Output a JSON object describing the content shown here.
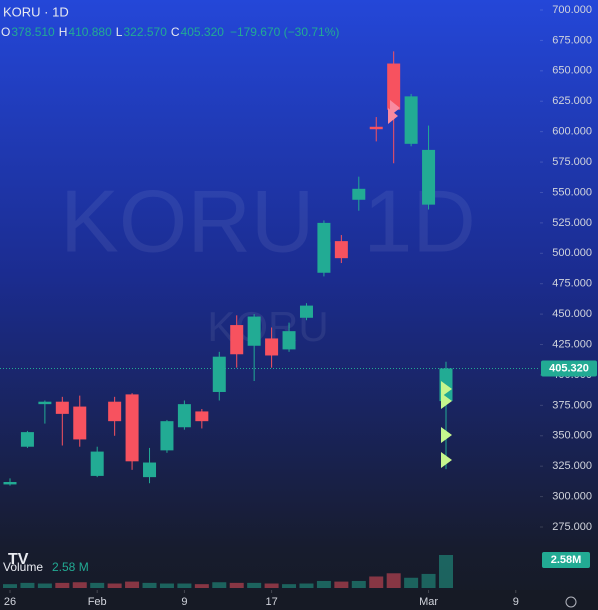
{
  "chart_data": {
    "type": "candlestick",
    "title": "KORU · 1D",
    "header_fields": [
      {
        "key": "O",
        "label": "378.510"
      },
      {
        "key": "H",
        "label": "410.880"
      },
      {
        "key": "L",
        "label": "322.570"
      },
      {
        "key": "C",
        "label": "405.320"
      }
    ],
    "change_label": "−179.670 (−30.71%)",
    "watermark": "KORU, 1D",
    "watermark_small": "KORU",
    "up_color": "#22ab94",
    "down_color": "#f7525f",
    "categories": [
      "26",
      null,
      null,
      null,
      null,
      "Feb",
      null,
      null,
      null,
      null,
      "9",
      null,
      null,
      null,
      null,
      "17",
      null,
      null,
      null,
      null,
      null,
      null,
      null,
      null,
      "Mar",
      null
    ],
    "xticks": [
      {
        "value": 0,
        "label": "26"
      },
      {
        "value": 5,
        "label": "Feb"
      },
      {
        "value": 10,
        "label": "9"
      },
      {
        "value": 15,
        "label": "17"
      },
      {
        "value": 24,
        "label": "Mar"
      },
      {
        "value": 29,
        "label": "9"
      }
    ],
    "open": [
      310,
      341,
      376,
      378,
      374,
      317,
      378,
      384,
      316,
      338,
      357,
      370,
      386,
      441,
      424,
      430,
      421,
      447,
      484,
      510,
      544,
      604,
      656,
      590,
      540,
      378.51
    ],
    "high": [
      315,
      354,
      379,
      382,
      383,
      341,
      382,
      385,
      340,
      363,
      379,
      372,
      419,
      449,
      450,
      439,
      443,
      459,
      527,
      515,
      563,
      612,
      666,
      631,
      605,
      410.88
    ],
    "low": [
      309,
      340,
      360,
      342,
      341,
      316,
      350,
      322,
      311,
      336,
      355,
      356,
      379,
      406,
      395,
      406,
      419,
      445,
      481,
      492,
      535,
      592,
      574,
      588,
      536,
      322.57
    ],
    "close": [
      312,
      353,
      378,
      368,
      347,
      337,
      362,
      329,
      328,
      362,
      376,
      362,
      415,
      417,
      448,
      416,
      436,
      457,
      525,
      496,
      553,
      602,
      618,
      629,
      585,
      405.32
    ],
    "volume": {
      "name": "Volume",
      "value_label": "2.58 M",
      "tag_label": "2.58M",
      "values": [
        0.3,
        0.4,
        0.35,
        0.4,
        0.45,
        0.4,
        0.35,
        0.5,
        0.4,
        0.35,
        0.35,
        0.3,
        0.45,
        0.4,
        0.4,
        0.35,
        0.3,
        0.35,
        0.55,
        0.5,
        0.55,
        0.9,
        1.15,
        0.8,
        1.1,
        2.58
      ]
    },
    "ylim": [
      275,
      700
    ],
    "yticks": [
      {
        "value": 700,
        "label": "700.000"
      },
      {
        "value": 675,
        "label": "675.000"
      },
      {
        "value": 650,
        "label": "650.000"
      },
      {
        "value": 625,
        "label": "625.000"
      },
      {
        "value": 600,
        "label": "600.000"
      },
      {
        "value": 575,
        "label": "575.000"
      },
      {
        "value": 550,
        "label": "550.000"
      },
      {
        "value": 525,
        "label": "525.000"
      },
      {
        "value": 500,
        "label": "500.000"
      },
      {
        "value": 475,
        "label": "475.000"
      },
      {
        "value": 450,
        "label": "450.000"
      },
      {
        "value": 425,
        "label": "425.000"
      },
      {
        "value": 400,
        "label": "400.000"
      },
      {
        "value": 375,
        "label": "375.000"
      },
      {
        "value": 350,
        "label": "350.000"
      },
      {
        "value": 325,
        "label": "325.000"
      },
      {
        "value": 300,
        "label": "300.000"
      },
      {
        "value": 275,
        "label": "275.000"
      }
    ]
  }
}
